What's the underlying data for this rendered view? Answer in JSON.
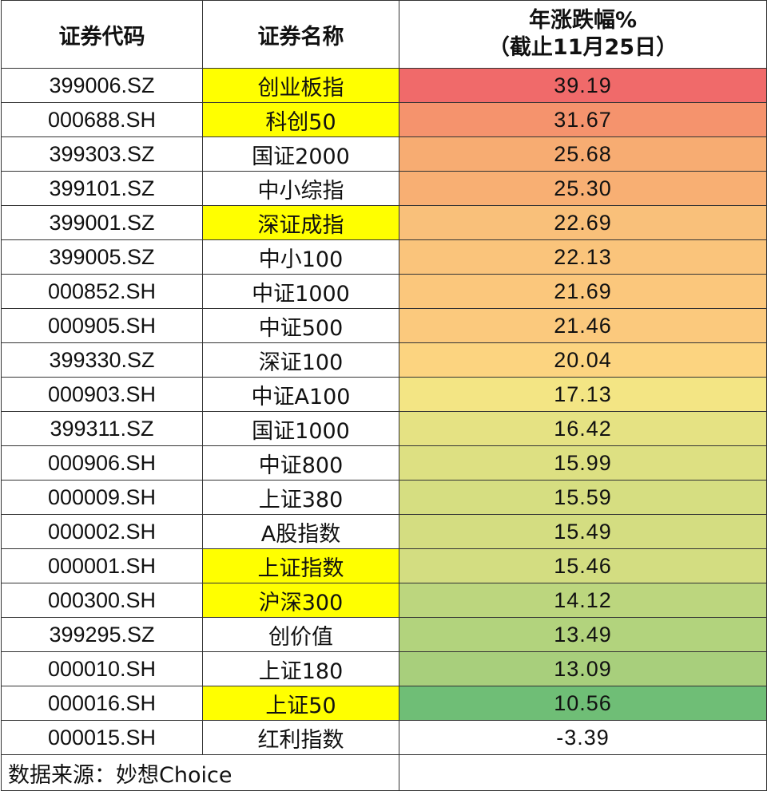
{
  "table": {
    "headers": {
      "code": "证券代码",
      "name": "证券名称",
      "pct_line1": "年涨跌幅%",
      "pct_line2": "（截止11月25日）"
    },
    "rows": [
      {
        "code": "399006.SZ",
        "name": "创业板指",
        "value": "39.19",
        "highlight": true,
        "color": "#f06a6a"
      },
      {
        "code": "000688.SH",
        "name": "科创50",
        "value": "31.67",
        "highlight": true,
        "color": "#f5936d"
      },
      {
        "code": "399303.SZ",
        "name": "国证2000",
        "value": "25.68",
        "highlight": false,
        "color": "#f7ac72"
      },
      {
        "code": "399101.SZ",
        "name": "中小综指",
        "value": "25.30",
        "highlight": false,
        "color": "#f8af73"
      },
      {
        "code": "399001.SZ",
        "name": "深证成指",
        "value": "22.69",
        "highlight": true,
        "color": "#f9c07a"
      },
      {
        "code": "399005.SZ",
        "name": "中小100",
        "value": "22.13",
        "highlight": false,
        "color": "#fac47b"
      },
      {
        "code": "000852.SH",
        "name": "中证1000",
        "value": "21.69",
        "highlight": false,
        "color": "#fbc77c"
      },
      {
        "code": "000905.SH",
        "name": "中证500",
        "value": "21.46",
        "highlight": false,
        "color": "#fbc97d"
      },
      {
        "code": "399330.SZ",
        "name": "深证100",
        "value": "20.04",
        "highlight": false,
        "color": "#fcd480"
      },
      {
        "code": "000903.SH",
        "name": "中证A100",
        "value": "17.13",
        "highlight": false,
        "color": "#f3e584"
      },
      {
        "code": "399311.SZ",
        "name": "国证1000",
        "value": "16.42",
        "highlight": false,
        "color": "#e5e283"
      },
      {
        "code": "000906.SH",
        "name": "中证800",
        "value": "15.99",
        "highlight": false,
        "color": "#dde082"
      },
      {
        "code": "000009.SH",
        "name": "上证380",
        "value": "15.59",
        "highlight": false,
        "color": "#d6de81"
      },
      {
        "code": "000002.SH",
        "name": "A股指数",
        "value": "15.49",
        "highlight": false,
        "color": "#d4dd81"
      },
      {
        "code": "000001.SH",
        "name": "上证指数",
        "value": "15.46",
        "highlight": true,
        "color": "#d3dd81"
      },
      {
        "code": "000300.SH",
        "name": "沪深300",
        "value": "14.12",
        "highlight": true,
        "color": "#bcd67e"
      },
      {
        "code": "399295.SZ",
        "name": "创价值",
        "value": "13.49",
        "highlight": false,
        "color": "#b2d37d"
      },
      {
        "code": "000010.SH",
        "name": "上证180",
        "value": "13.09",
        "highlight": false,
        "color": "#a8cf7c"
      },
      {
        "code": "000016.SH",
        "name": "上证50",
        "value": "10.56",
        "highlight": true,
        "color": "#6fbe76"
      },
      {
        "code": "000015.SH",
        "name": "红利指数",
        "value": "-3.39",
        "highlight": false,
        "color": "#ffffff"
      }
    ],
    "footer": "数据来源：妙想Choice"
  }
}
